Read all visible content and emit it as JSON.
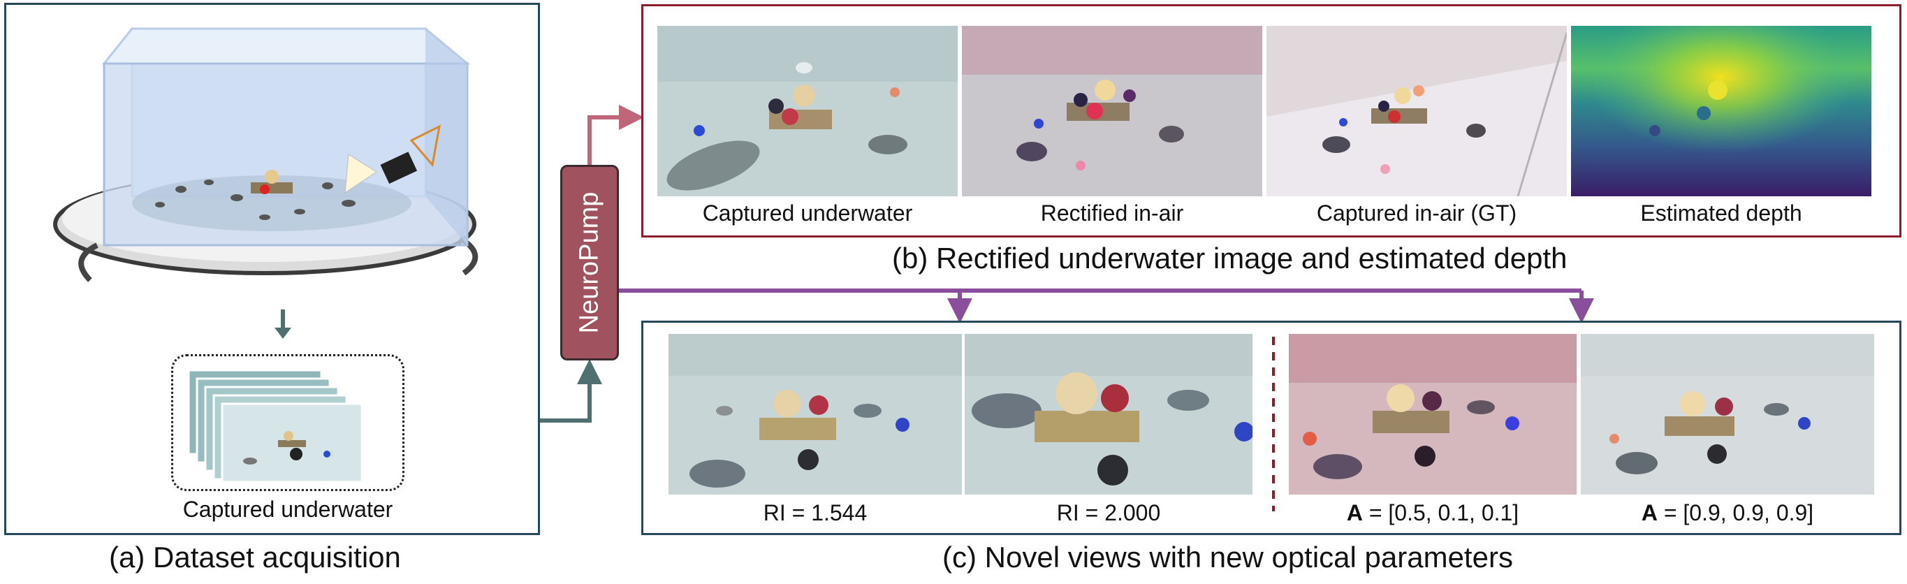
{
  "panel_a": {
    "caption": "(a) Dataset acquisition",
    "stack_label": "Captured underwater"
  },
  "neuropump": {
    "label": "NeuroPump"
  },
  "panel_b": {
    "caption": "(b) Rectified underwater image and estimated depth",
    "images": [
      {
        "label": "Captured underwater"
      },
      {
        "label": "Rectified in-air"
      },
      {
        "label": "Captured in-air (GT)"
      },
      {
        "label": "Estimated depth"
      }
    ]
  },
  "panel_c": {
    "caption": "(c) Novel views with new optical parameters",
    "images": [
      {
        "label": "RI = 1.544"
      },
      {
        "label": "RI = 2.000"
      },
      {
        "label_bold": "A",
        "label_rest": " = [0.5, 0.1, 0.1]"
      },
      {
        "label_bold": "A",
        "label_rest": " = [0.9, 0.9, 0.9]"
      }
    ]
  },
  "colors": {
    "teal_border": "#26485a",
    "maroon_border": "#8b1d2c",
    "arrow_teal": "#4f6f70",
    "arrow_pink": "#c0667a",
    "arrow_purple": "#8a4f9c",
    "neuropump_fill": "#a0535f"
  }
}
